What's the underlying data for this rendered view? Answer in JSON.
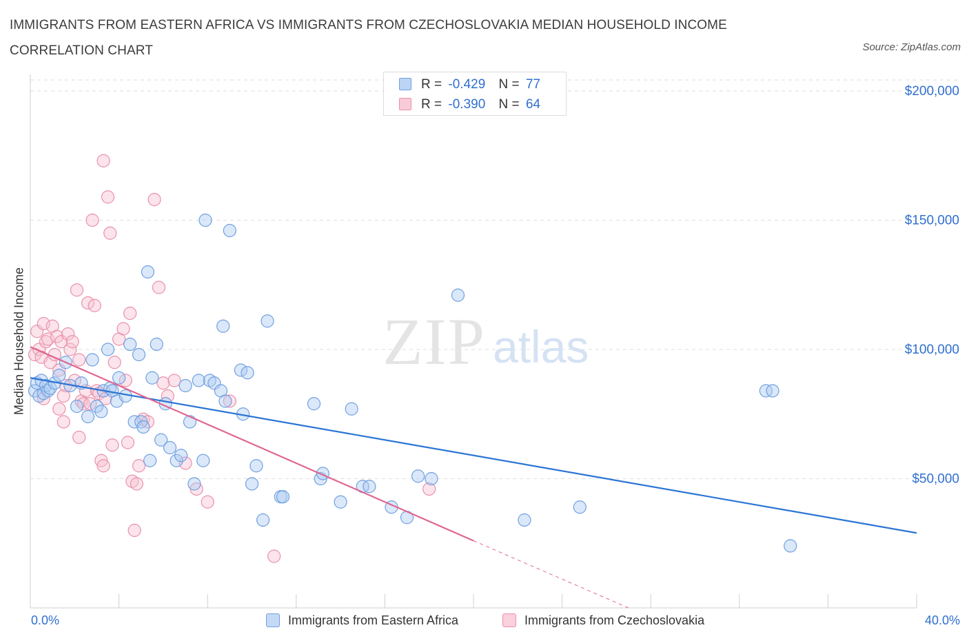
{
  "title": "IMMIGRANTS FROM EASTERN AFRICA VS IMMIGRANTS FROM CZECHOSLOVAKIA MEDIAN HOUSEHOLD INCOME CORRELATION CHART",
  "source": "Source: ZipAtlas.com",
  "watermark": {
    "zip": "ZIP",
    "atlas": "atlas"
  },
  "legend_top": [
    {
      "r_label": "R =",
      "r_value": "-0.429",
      "n_label": "N =",
      "n_value": "77",
      "color": "#8fb5ea"
    },
    {
      "r_label": "R =",
      "r_value": "-0.390",
      "n_label": "N =",
      "n_value": "64",
      "color": "#f0a3bb"
    }
  ],
  "legend_bottom": [
    "Immigrants from Eastern Africa",
    "Immigrants from Czechoslovakia"
  ],
  "colors": {
    "blue_fill": "#aecbf2",
    "blue_stroke": "#6f9fe0",
    "blue_line": "#2a74d4",
    "pink_fill": "#f7c3d2",
    "pink_stroke": "#ea8fab",
    "pink_line": "#e0668f",
    "axis_text": "#2f6fd0",
    "grid": "#dedede"
  },
  "chart_data": {
    "type": "scatter",
    "xlabel": "",
    "ylabel": "Median Household Income",
    "xlim": [
      0,
      40
    ],
    "ylim": [
      0,
      200000
    ],
    "x_tick_labels": [
      "0.0%",
      "40.0%"
    ],
    "y_ticks": [
      50000,
      100000,
      150000,
      200000
    ],
    "y_tick_labels": [
      "$50,000",
      "$100,000",
      "$150,000",
      "$200,000"
    ],
    "grid": true,
    "legend_position": "top-center",
    "series": [
      {
        "name": "Immigrants from Eastern Africa",
        "trend": {
          "x0": 0,
          "y0": 89000,
          "x1": 40,
          "y1": 29000
        },
        "points": [
          [
            0.2,
            84000
          ],
          [
            0.3,
            87000
          ],
          [
            0.4,
            82000
          ],
          [
            0.5,
            88000
          ],
          [
            0.6,
            83000
          ],
          [
            0.7,
            86000
          ],
          [
            0.8,
            84000
          ],
          [
            0.9,
            85000
          ],
          [
            1.1,
            87000
          ],
          [
            1.3,
            90000
          ],
          [
            1.6,
            95000
          ],
          [
            1.8,
            86000
          ],
          [
            2.1,
            78000
          ],
          [
            2.3,
            87000
          ],
          [
            2.6,
            74000
          ],
          [
            2.8,
            96000
          ],
          [
            3.0,
            78000
          ],
          [
            3.2,
            76000
          ],
          [
            3.3,
            84000
          ],
          [
            3.5,
            100000
          ],
          [
            3.6,
            85000
          ],
          [
            3.7,
            84000
          ],
          [
            3.9,
            80000
          ],
          [
            4.0,
            89000
          ],
          [
            4.3,
            82000
          ],
          [
            4.5,
            102000
          ],
          [
            4.7,
            72000
          ],
          [
            4.9,
            98000
          ],
          [
            5.0,
            72000
          ],
          [
            5.1,
            70000
          ],
          [
            5.3,
            130000
          ],
          [
            5.4,
            57000
          ],
          [
            5.5,
            89000
          ],
          [
            5.7,
            102000
          ],
          [
            5.9,
            65000
          ],
          [
            6.1,
            79000
          ],
          [
            6.3,
            62000
          ],
          [
            6.6,
            57000
          ],
          [
            6.8,
            59000
          ],
          [
            7.0,
            86000
          ],
          [
            7.2,
            72000
          ],
          [
            7.4,
            48000
          ],
          [
            7.6,
            88000
          ],
          [
            7.8,
            57000
          ],
          [
            7.9,
            150000
          ],
          [
            8.1,
            88000
          ],
          [
            8.3,
            87000
          ],
          [
            8.6,
            84000
          ],
          [
            8.7,
            109000
          ],
          [
            8.8,
            80000
          ],
          [
            9.0,
            146000
          ],
          [
            9.5,
            92000
          ],
          [
            9.6,
            75000
          ],
          [
            9.8,
            91000
          ],
          [
            10.0,
            48000
          ],
          [
            10.2,
            55000
          ],
          [
            10.5,
            34000
          ],
          [
            10.7,
            111000
          ],
          [
            11.3,
            43000
          ],
          [
            12.8,
            79000
          ],
          [
            13.1,
            50000
          ],
          [
            13.2,
            52000
          ],
          [
            14.0,
            41000
          ],
          [
            14.5,
            77000
          ],
          [
            15.0,
            47000
          ],
          [
            16.3,
            39000
          ],
          [
            17.0,
            35000
          ],
          [
            17.5,
            51000
          ],
          [
            18.1,
            50000
          ],
          [
            19.3,
            121000
          ],
          [
            22.3,
            34000
          ],
          [
            24.8,
            39000
          ],
          [
            33.2,
            84000
          ],
          [
            34.3,
            24000
          ],
          [
            33.5,
            84000
          ],
          [
            11.4,
            43000
          ],
          [
            15.3,
            47000
          ]
        ]
      },
      {
        "name": "Immigrants from Czechoslovakia",
        "trend": {
          "x0": 0,
          "y0": 101000,
          "x1": 20,
          "y1": 26000,
          "dash_to_x": 27,
          "dash_to_y": 0
        },
        "points": [
          [
            0.2,
            98000
          ],
          [
            0.3,
            107000
          ],
          [
            0.4,
            100000
          ],
          [
            0.5,
            97000
          ],
          [
            0.6,
            110000
          ],
          [
            0.7,
            103000
          ],
          [
            0.8,
            104000
          ],
          [
            0.9,
            95000
          ],
          [
            1.0,
            109000
          ],
          [
            1.1,
            98000
          ],
          [
            1.2,
            105000
          ],
          [
            1.3,
            92000
          ],
          [
            1.4,
            103000
          ],
          [
            1.5,
            82000
          ],
          [
            1.6,
            86000
          ],
          [
            1.7,
            106000
          ],
          [
            1.8,
            100000
          ],
          [
            1.9,
            103000
          ],
          [
            2.0,
            88000
          ],
          [
            2.1,
            123000
          ],
          [
            2.2,
            66000
          ],
          [
            2.3,
            80000
          ],
          [
            2.4,
            79000
          ],
          [
            2.5,
            84000
          ],
          [
            2.6,
            118000
          ],
          [
            2.7,
            79000
          ],
          [
            2.8,
            150000
          ],
          [
            2.9,
            117000
          ],
          [
            3.0,
            84000
          ],
          [
            3.1,
            83000
          ],
          [
            3.2,
            57000
          ],
          [
            3.3,
            173000
          ],
          [
            3.4,
            81000
          ],
          [
            3.5,
            159000
          ],
          [
            3.6,
            145000
          ],
          [
            3.7,
            63000
          ],
          [
            3.8,
            95000
          ],
          [
            4.0,
            104000
          ],
          [
            4.2,
            108000
          ],
          [
            4.3,
            88000
          ],
          [
            4.4,
            64000
          ],
          [
            4.5,
            114000
          ],
          [
            4.6,
            49000
          ],
          [
            4.7,
            30000
          ],
          [
            4.8,
            48000
          ],
          [
            4.9,
            55000
          ],
          [
            5.1,
            73000
          ],
          [
            5.3,
            72000
          ],
          [
            5.6,
            158000
          ],
          [
            5.8,
            124000
          ],
          [
            6.0,
            87000
          ],
          [
            6.2,
            82000
          ],
          [
            6.5,
            88000
          ],
          [
            7.0,
            56000
          ],
          [
            7.5,
            46000
          ],
          [
            8.0,
            41000
          ],
          [
            9.0,
            80000
          ],
          [
            11.0,
            20000
          ],
          [
            18.0,
            46000
          ],
          [
            1.3,
            77000
          ],
          [
            1.5,
            72000
          ],
          [
            2.2,
            96000
          ],
          [
            3.3,
            55000
          ],
          [
            0.6,
            81000
          ]
        ]
      }
    ]
  }
}
